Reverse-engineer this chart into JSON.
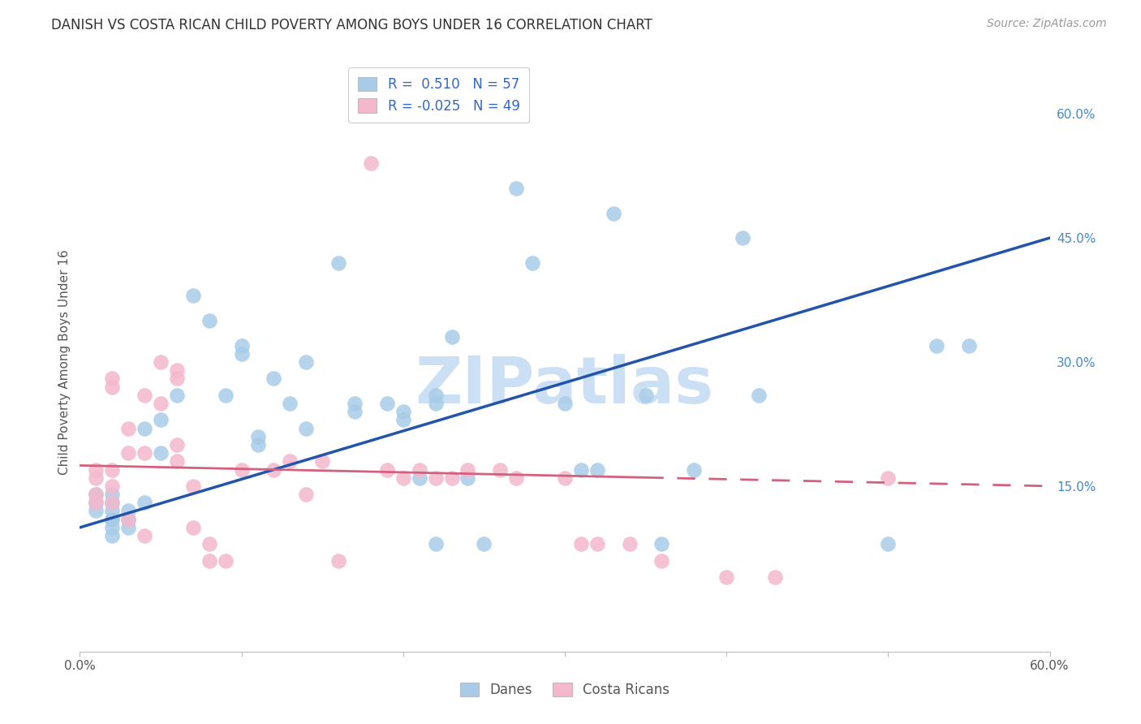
{
  "title": "DANISH VS COSTA RICAN CHILD POVERTY AMONG BOYS UNDER 16 CORRELATION CHART",
  "source": "Source: ZipAtlas.com",
  "ylabel": "Child Poverty Among Boys Under 16",
  "xlim": [
    0.0,
    60.0
  ],
  "ylim": [
    -5.0,
    65.0
  ],
  "right_yticks": [
    15.0,
    30.0,
    45.0,
    60.0
  ],
  "right_ytick_labels": [
    "15.0%",
    "30.0%",
    "45.0%",
    "60.0%"
  ],
  "xtick_positions": [
    0.0,
    10.0,
    20.0,
    30.0,
    40.0,
    50.0,
    60.0
  ],
  "xtick_labels": [
    "0.0%",
    "",
    "",
    "",
    "",
    "",
    "60.0%"
  ],
  "danes_R": 0.51,
  "danes_N": 57,
  "costa_R": -0.025,
  "costa_N": 49,
  "danes_color": "#a8cce8",
  "costa_color": "#f4b8cc",
  "danes_line_color": "#2255aa",
  "costa_line_color": "#d46080",
  "watermark": "ZIPatlas",
  "watermark_color": "#cce0f5",
  "danes_line_x0": 0.0,
  "danes_line_y0": 10.0,
  "danes_line_x1": 60.0,
  "danes_line_y1": 45.0,
  "costa_line_x0": 0.0,
  "costa_line_y0": 17.5,
  "costa_line_x1": 60.0,
  "costa_line_y1": 15.0,
  "danes_x": [
    1,
    1,
    1,
    2,
    2,
    2,
    2,
    2,
    2,
    2,
    3,
    3,
    3,
    3,
    4,
    4,
    5,
    5,
    6,
    7,
    8,
    9,
    10,
    10,
    11,
    11,
    12,
    13,
    14,
    14,
    16,
    17,
    17,
    19,
    20,
    20,
    21,
    22,
    22,
    22,
    23,
    24,
    25,
    27,
    28,
    30,
    31,
    32,
    33,
    35,
    36,
    38,
    41,
    42,
    50,
    53,
    55
  ],
  "danes_y": [
    14,
    13,
    12,
    14,
    13,
    12,
    11,
    11,
    10,
    9,
    12,
    11,
    11,
    10,
    22,
    13,
    23,
    19,
    26,
    38,
    35,
    26,
    32,
    31,
    21,
    20,
    28,
    25,
    30,
    22,
    42,
    25,
    24,
    25,
    24,
    23,
    16,
    26,
    25,
    8,
    33,
    16,
    8,
    51,
    42,
    25,
    17,
    17,
    48,
    26,
    8,
    17,
    45,
    26,
    8,
    32,
    32
  ],
  "costa_x": [
    1,
    1,
    1,
    1,
    2,
    2,
    2,
    2,
    2,
    3,
    3,
    3,
    4,
    4,
    4,
    5,
    5,
    6,
    6,
    6,
    6,
    7,
    7,
    8,
    8,
    9,
    10,
    12,
    13,
    14,
    15,
    16,
    18,
    19,
    20,
    21,
    22,
    23,
    24,
    26,
    27,
    30,
    31,
    32,
    34,
    36,
    40,
    43,
    50
  ],
  "costa_y": [
    17,
    16,
    14,
    13,
    28,
    27,
    17,
    15,
    13,
    22,
    19,
    11,
    26,
    19,
    9,
    30,
    25,
    29,
    28,
    20,
    18,
    15,
    10,
    8,
    6,
    6,
    17,
    17,
    18,
    14,
    18,
    6,
    54,
    17,
    16,
    17,
    16,
    16,
    17,
    17,
    16,
    16,
    8,
    8,
    8,
    6,
    4,
    4,
    16
  ]
}
